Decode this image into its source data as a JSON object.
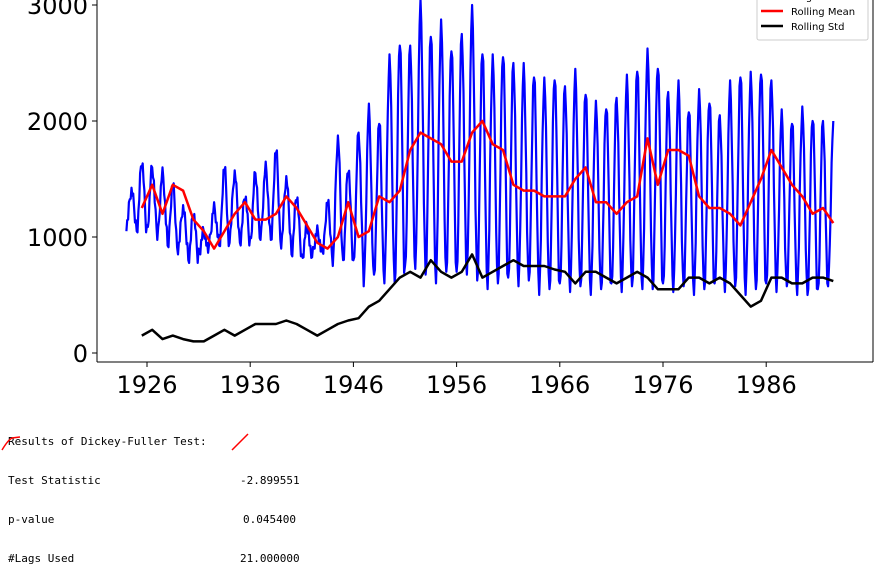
{
  "chart_data": {
    "type": "line",
    "title": "",
    "xlabel": "",
    "ylabel": "",
    "xlim": [
      1921,
      1996
    ],
    "ylim": [
      -80,
      3050
    ],
    "xticks": [
      1926,
      1936,
      1946,
      1956,
      1966,
      1976,
      1986
    ],
    "yticks": [
      0,
      1000,
      2000,
      3000
    ],
    "grid": false,
    "legend_placement": "top-right",
    "series": [
      {
        "name": "Original",
        "color": "#0000ff",
        "frequency": "monthly, annual seasonal cycle",
        "years": [
          1924,
          1925,
          1926,
          1927,
          1928,
          1929,
          1930,
          1931,
          1932,
          1933,
          1934,
          1935,
          1936,
          1937,
          1938,
          1939,
          1940,
          1941,
          1942,
          1943,
          1944,
          1945,
          1946,
          1947,
          1948,
          1949,
          1950,
          1951,
          1952,
          1953,
          1954,
          1955,
          1956,
          1957,
          1958,
          1959,
          1960,
          1961,
          1962,
          1963,
          1964,
          1965,
          1966,
          1967,
          1968,
          1969,
          1970,
          1971,
          1972,
          1973,
          1974,
          1975,
          1976,
          1977,
          1978,
          1979,
          1980,
          1981,
          1982,
          1983,
          1984,
          1985,
          1986,
          1987,
          1988,
          1989,
          1990,
          1991,
          1992
        ],
        "annual_peaks": [
          1400,
          1650,
          1600,
          1550,
          1450,
          1250,
          1200,
          1050,
          1250,
          1600,
          1550,
          1350,
          1550,
          1600,
          1750,
          1500,
          1350,
          1100,
          1050,
          1300,
          1850,
          1600,
          1900,
          2100,
          2000,
          2550,
          2700,
          2650,
          3000,
          2750,
          2850,
          2650,
          2750,
          2950,
          2600,
          2550,
          2600,
          2500,
          2450,
          2400,
          2350,
          2400,
          2300,
          2400,
          2250,
          2150,
          2150,
          2200,
          2350,
          2450,
          2600,
          2500,
          2250,
          2300,
          2100,
          2250,
          2200,
          2050,
          2300,
          2400,
          2400,
          2450,
          2350,
          2050,
          2000,
          2100,
          2050,
          2000,
          1950
        ],
        "annual_troughs": [
          1100,
          1050,
          1050,
          1000,
          900,
          900,
          800,
          850,
          950,
          900,
          1000,
          950,
          950,
          1000,
          950,
          950,
          850,
          800,
          850,
          850,
          800,
          800,
          750,
          600,
          650,
          650,
          600,
          700,
          750,
          650,
          650,
          700,
          650,
          700,
          600,
          600,
          600,
          600,
          600,
          600,
          550,
          550,
          550,
          550,
          550,
          550,
          550,
          550,
          550,
          550,
          600,
          550,
          550,
          550,
          550,
          550,
          550,
          550,
          550,
          550,
          550,
          550,
          550,
          550,
          550,
          550,
          500,
          500,
          600
        ]
      },
      {
        "name": "Rolling Mean",
        "color": "#ff0000",
        "years": [
          1925,
          1926,
          1927,
          1928,
          1929,
          1930,
          1931,
          1932,
          1933,
          1934,
          1935,
          1936,
          1937,
          1938,
          1939,
          1940,
          1941,
          1942,
          1943,
          1944,
          1945,
          1946,
          1947,
          1948,
          1949,
          1950,
          1951,
          1952,
          1953,
          1954,
          1955,
          1956,
          1957,
          1958,
          1959,
          1960,
          1961,
          1962,
          1963,
          1964,
          1965,
          1966,
          1967,
          1968,
          1969,
          1970,
          1971,
          1972,
          1973,
          1974,
          1975,
          1976,
          1977,
          1978,
          1979,
          1980,
          1981,
          1982,
          1983,
          1984,
          1985,
          1986,
          1987,
          1988,
          1989,
          1990,
          1991,
          1992
        ],
        "values": [
          1250,
          1450,
          1200,
          1450,
          1400,
          1150,
          1050,
          900,
          1050,
          1200,
          1300,
          1150,
          1150,
          1200,
          1350,
          1250,
          1100,
          950,
          900,
          1000,
          1300,
          1000,
          1050,
          1350,
          1300,
          1400,
          1750,
          1900,
          1850,
          1800,
          1650,
          1650,
          1900,
          2000,
          1800,
          1750,
          1450,
          1400,
          1400,
          1350,
          1350,
          1350,
          1500,
          1600,
          1300,
          1300,
          1200,
          1300,
          1350,
          1850,
          1450,
          1750,
          1750,
          1700,
          1350,
          1250,
          1250,
          1200,
          1100,
          1300,
          1500,
          1750,
          1600,
          1450,
          1350,
          1200,
          1250,
          1120
        ]
      },
      {
        "name": "Rolling Std",
        "color": "#000000",
        "years": [
          1925,
          1926,
          1927,
          1928,
          1929,
          1930,
          1931,
          1932,
          1933,
          1934,
          1935,
          1936,
          1937,
          1938,
          1939,
          1940,
          1941,
          1942,
          1943,
          1944,
          1945,
          1946,
          1947,
          1948,
          1949,
          1950,
          1951,
          1952,
          1953,
          1954,
          1955,
          1956,
          1957,
          1958,
          1959,
          1960,
          1961,
          1962,
          1963,
          1964,
          1965,
          1966,
          1967,
          1968,
          1969,
          1970,
          1971,
          1972,
          1973,
          1974,
          1975,
          1976,
          1977,
          1978,
          1979,
          1980,
          1981,
          1982,
          1983,
          1984,
          1985,
          1986,
          1987,
          1988,
          1989,
          1990,
          1991,
          1992
        ],
        "values": [
          150,
          200,
          120,
          150,
          120,
          100,
          100,
          150,
          200,
          150,
          200,
          250,
          250,
          250,
          280,
          250,
          200,
          150,
          200,
          250,
          280,
          300,
          400,
          450,
          550,
          650,
          700,
          650,
          800,
          700,
          650,
          700,
          850,
          650,
          700,
          750,
          800,
          750,
          750,
          750,
          720,
          700,
          600,
          700,
          700,
          650,
          600,
          650,
          700,
          650,
          550,
          550,
          550,
          650,
          650,
          600,
          650,
          600,
          500,
          400,
          450,
          650,
          650,
          600,
          600,
          650,
          650,
          620
        ]
      }
    ]
  },
  "output": {
    "heading": "Results of Dickey-Fuller Test:",
    "rows": [
      {
        "label": "Test Statistic",
        "value": "-2.899551"
      },
      {
        "label": "p-value",
        "value": "0.045400"
      },
      {
        "label": "#Lags Used",
        "value": "21.000000"
      }
    ],
    "annotation_color": "#ff0000"
  }
}
